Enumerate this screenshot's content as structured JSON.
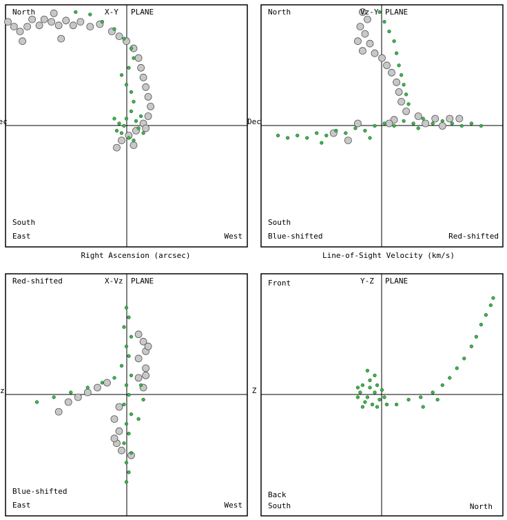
{
  "chart_data": [
    {
      "type": "scatter",
      "plane_label": "X-Y",
      "plane_word": "PLANE",
      "axis_left_label": "Dec",
      "xlabel": "Right Ascension (arcsec)",
      "corner_labels": {
        "top_left": "North",
        "mid_left": "South",
        "bottom_left": "East",
        "bottom_right": "West"
      },
      "xlim": [
        -1,
        1
      ],
      "ylim": [
        -1,
        1
      ],
      "series": [
        {
          "marker": "gray-circle",
          "color": "#c8c8c8",
          "values": [
            [
              -0.98,
              0.86
            ],
            [
              -0.93,
              0.82
            ],
            [
              -0.88,
              0.78
            ],
            [
              -0.82,
              0.82
            ],
            [
              -0.78,
              0.88
            ],
            [
              -0.72,
              0.83
            ],
            [
              -0.68,
              0.88
            ],
            [
              -0.62,
              0.86
            ],
            [
              -0.56,
              0.83
            ],
            [
              -0.5,
              0.87
            ],
            [
              -0.44,
              0.83
            ],
            [
              -0.38,
              0.86
            ],
            [
              -0.3,
              0.82
            ],
            [
              -0.22,
              0.84
            ],
            [
              -0.12,
              0.78
            ],
            [
              -0.06,
              0.74
            ],
            [
              0.0,
              0.7
            ],
            [
              0.06,
              0.64
            ],
            [
              0.1,
              0.56
            ],
            [
              0.12,
              0.48
            ],
            [
              0.14,
              0.4
            ],
            [
              0.16,
              0.32
            ],
            [
              0.18,
              0.24
            ],
            [
              0.2,
              0.16
            ],
            [
              0.18,
              0.08
            ],
            [
              0.14,
              0.02
            ],
            [
              0.08,
              -0.04
            ],
            [
              0.02,
              -0.08
            ],
            [
              -0.04,
              -0.12
            ],
            [
              -0.08,
              -0.18
            ],
            [
              0.06,
              -0.16
            ],
            [
              0.16,
              -0.02
            ],
            [
              -0.6,
              0.93
            ],
            [
              -0.54,
              0.72
            ],
            [
              -0.86,
              0.7
            ]
          ]
        },
        {
          "marker": "green-dot",
          "color": "#3cb44b",
          "values": [
            [
              -0.42,
              0.94
            ],
            [
              -0.3,
              0.92
            ],
            [
              -0.2,
              0.86
            ],
            [
              -0.1,
              0.8
            ],
            [
              -0.02,
              0.72
            ],
            [
              0.04,
              0.64
            ],
            [
              0.06,
              0.56
            ],
            [
              0.02,
              0.48
            ],
            [
              -0.04,
              0.42
            ],
            [
              0.0,
              0.34
            ],
            [
              0.04,
              0.28
            ],
            [
              0.06,
              0.2
            ],
            [
              0.04,
              0.12
            ],
            [
              0.0,
              0.06
            ],
            [
              -0.06,
              0.02
            ],
            [
              -0.08,
              -0.04
            ],
            [
              0.02,
              -0.1
            ],
            [
              0.1,
              -0.02
            ],
            [
              0.08,
              0.04
            ],
            [
              -0.02,
              0.0
            ],
            [
              0.12,
              0.08
            ],
            [
              -0.1,
              0.06
            ],
            [
              0.06,
              -0.12
            ],
            [
              -0.04,
              -0.06
            ],
            [
              0.14,
              -0.06
            ]
          ]
        }
      ]
    },
    {
      "type": "scatter",
      "plane_label": "Vz-Y",
      "plane_word": "PLANE",
      "axis_left_label": "Dec",
      "xlabel": "Line-of-Sight Velocity (km/s)",
      "corner_labels": {
        "top_left": "North",
        "mid_left": "South",
        "bottom_left": "Blue-shifted",
        "bottom_right": "Red-shifted"
      },
      "xlim": [
        -1,
        1
      ],
      "ylim": [
        -1,
        1
      ],
      "series": [
        {
          "marker": "gray-circle",
          "color": "#c8c8c8",
          "values": [
            [
              -0.16,
              0.94
            ],
            [
              -0.12,
              0.88
            ],
            [
              -0.18,
              0.82
            ],
            [
              -0.14,
              0.76
            ],
            [
              -0.2,
              0.7
            ],
            [
              -0.1,
              0.68
            ],
            [
              -0.16,
              0.62
            ],
            [
              -0.06,
              0.6
            ],
            [
              0.0,
              0.56
            ],
            [
              0.04,
              0.5
            ],
            [
              0.08,
              0.44
            ],
            [
              0.12,
              0.36
            ],
            [
              0.14,
              0.28
            ],
            [
              0.16,
              0.2
            ],
            [
              0.2,
              0.12
            ],
            [
              0.3,
              0.08
            ],
            [
              0.44,
              0.06
            ],
            [
              0.56,
              0.06
            ],
            [
              0.64,
              0.06
            ],
            [
              0.1,
              0.05
            ],
            [
              -0.2,
              0.02
            ],
            [
              -0.4,
              -0.06
            ],
            [
              -0.28,
              -0.12
            ],
            [
              0.06,
              0.02
            ],
            [
              0.5,
              0.0
            ],
            [
              0.36,
              0.02
            ]
          ]
        },
        {
          "marker": "green-dot",
          "color": "#3cb44b",
          "values": [
            [
              -0.02,
              0.94
            ],
            [
              0.02,
              0.86
            ],
            [
              0.06,
              0.78
            ],
            [
              0.1,
              0.7
            ],
            [
              0.12,
              0.6
            ],
            [
              0.14,
              0.5
            ],
            [
              0.16,
              0.42
            ],
            [
              0.18,
              0.34
            ],
            [
              0.2,
              0.26
            ],
            [
              0.22,
              0.18
            ],
            [
              -0.86,
              -0.08
            ],
            [
              -0.78,
              -0.1
            ],
            [
              -0.7,
              -0.08
            ],
            [
              -0.62,
              -0.1
            ],
            [
              -0.54,
              -0.06
            ],
            [
              -0.46,
              -0.08
            ],
            [
              -0.38,
              -0.04
            ],
            [
              -0.3,
              -0.06
            ],
            [
              -0.22,
              -0.02
            ],
            [
              -0.14,
              -0.04
            ],
            [
              -0.06,
              0.0
            ],
            [
              0.02,
              0.02
            ],
            [
              0.1,
              0.0
            ],
            [
              0.18,
              0.04
            ],
            [
              0.26,
              0.02
            ],
            [
              0.34,
              0.06
            ],
            [
              0.42,
              0.02
            ],
            [
              0.5,
              0.04
            ],
            [
              0.58,
              0.02
            ],
            [
              0.66,
              0.0
            ],
            [
              0.74,
              0.02
            ],
            [
              0.82,
              0.0
            ],
            [
              -0.5,
              -0.14
            ],
            [
              0.3,
              -0.02
            ],
            [
              -0.1,
              -0.1
            ]
          ]
        }
      ]
    },
    {
      "type": "scatter",
      "plane_label": "X-Vz",
      "plane_word": "PLANE",
      "axis_left_label": "Vz",
      "xlabel": "",
      "corner_labels": {
        "top_left": "Red-shifted",
        "mid_left": "Blue-shifted",
        "bottom_left": "East",
        "bottom_right": "West"
      },
      "xlim": [
        -1,
        1
      ],
      "ylim": [
        -1,
        1
      ],
      "series": [
        {
          "marker": "gray-circle",
          "color": "#c8c8c8",
          "values": [
            [
              -0.56,
              -0.14
            ],
            [
              -0.48,
              -0.06
            ],
            [
              -0.4,
              -0.02
            ],
            [
              -0.32,
              0.02
            ],
            [
              -0.24,
              0.06
            ],
            [
              -0.16,
              0.1
            ],
            [
              0.1,
              0.5
            ],
            [
              0.14,
              0.44
            ],
            [
              0.16,
              0.36
            ],
            [
              0.1,
              0.3
            ],
            [
              0.16,
              0.22
            ],
            [
              0.1,
              0.14
            ],
            [
              0.14,
              0.06
            ],
            [
              -0.06,
              -0.1
            ],
            [
              -0.1,
              -0.2
            ],
            [
              -0.06,
              -0.3
            ],
            [
              -0.08,
              -0.4
            ],
            [
              -0.04,
              -0.46
            ],
            [
              0.04,
              -0.5
            ],
            [
              -0.1,
              -0.36
            ],
            [
              0.18,
              0.4
            ],
            [
              0.16,
              0.16
            ]
          ]
        },
        {
          "marker": "green-dot",
          "color": "#3cb44b",
          "values": [
            [
              0.0,
              0.72
            ],
            [
              0.02,
              0.64
            ],
            [
              -0.02,
              0.56
            ],
            [
              0.04,
              0.48
            ],
            [
              0.0,
              0.4
            ],
            [
              0.02,
              0.32
            ],
            [
              -0.04,
              0.24
            ],
            [
              0.04,
              0.16
            ],
            [
              0.0,
              0.08
            ],
            [
              0.02,
              0.0
            ],
            [
              -0.02,
              -0.08
            ],
            [
              0.04,
              -0.16
            ],
            [
              0.0,
              -0.24
            ],
            [
              0.02,
              -0.32
            ],
            [
              -0.02,
              -0.4
            ],
            [
              0.04,
              -0.48
            ],
            [
              0.0,
              -0.56
            ],
            [
              0.02,
              -0.64
            ],
            [
              0.0,
              -0.72
            ],
            [
              -0.74,
              -0.06
            ],
            [
              -0.6,
              -0.02
            ],
            [
              -0.46,
              0.02
            ],
            [
              -0.32,
              0.06
            ],
            [
              -0.2,
              0.1
            ],
            [
              -0.1,
              0.14
            ],
            [
              0.12,
              0.08
            ],
            [
              0.14,
              -0.04
            ],
            [
              0.1,
              -0.2
            ]
          ]
        }
      ]
    },
    {
      "type": "scatter",
      "plane_label": "Y-Z",
      "plane_word": "PLANE",
      "axis_left_label": "Z",
      "xlabel": "",
      "corner_labels": {
        "top_left": "Front",
        "mid_left": "Back",
        "bottom_left": "South",
        "bottom_right": "North"
      },
      "xlim": [
        -1,
        1
      ],
      "ylim": [
        -1,
        1
      ],
      "series": [
        {
          "marker": "green-dot",
          "color": "#3cb44b",
          "values": [
            [
              -0.06,
              0.02
            ],
            [
              -0.12,
              -0.02
            ],
            [
              -0.18,
              0.02
            ],
            [
              -0.04,
              0.08
            ],
            [
              -0.1,
              0.12
            ],
            [
              -0.16,
              0.08
            ],
            [
              -0.02,
              -0.04
            ],
            [
              -0.08,
              -0.08
            ],
            [
              -0.14,
              -0.06
            ],
            [
              -0.2,
              -0.02
            ],
            [
              -0.06,
              0.16
            ],
            [
              0.0,
              0.04
            ],
            [
              -0.12,
              0.2
            ],
            [
              -0.2,
              0.06
            ],
            [
              -0.04,
              -0.1
            ],
            [
              0.02,
              -0.02
            ],
            [
              -0.16,
              -0.1
            ],
            [
              -0.1,
              0.06
            ],
            [
              0.04,
              -0.08
            ],
            [
              0.12,
              -0.08
            ],
            [
              0.22,
              -0.04
            ],
            [
              0.32,
              -0.02
            ],
            [
              0.42,
              0.02
            ],
            [
              0.5,
              0.08
            ],
            [
              0.56,
              0.14
            ],
            [
              0.62,
              0.22
            ],
            [
              0.68,
              0.3
            ],
            [
              0.74,
              0.4
            ],
            [
              0.78,
              0.48
            ],
            [
              0.82,
              0.58
            ],
            [
              0.86,
              0.66
            ],
            [
              0.9,
              0.74
            ],
            [
              0.92,
              0.8
            ],
            [
              0.34,
              -0.1
            ],
            [
              0.46,
              -0.04
            ]
          ]
        }
      ]
    }
  ]
}
